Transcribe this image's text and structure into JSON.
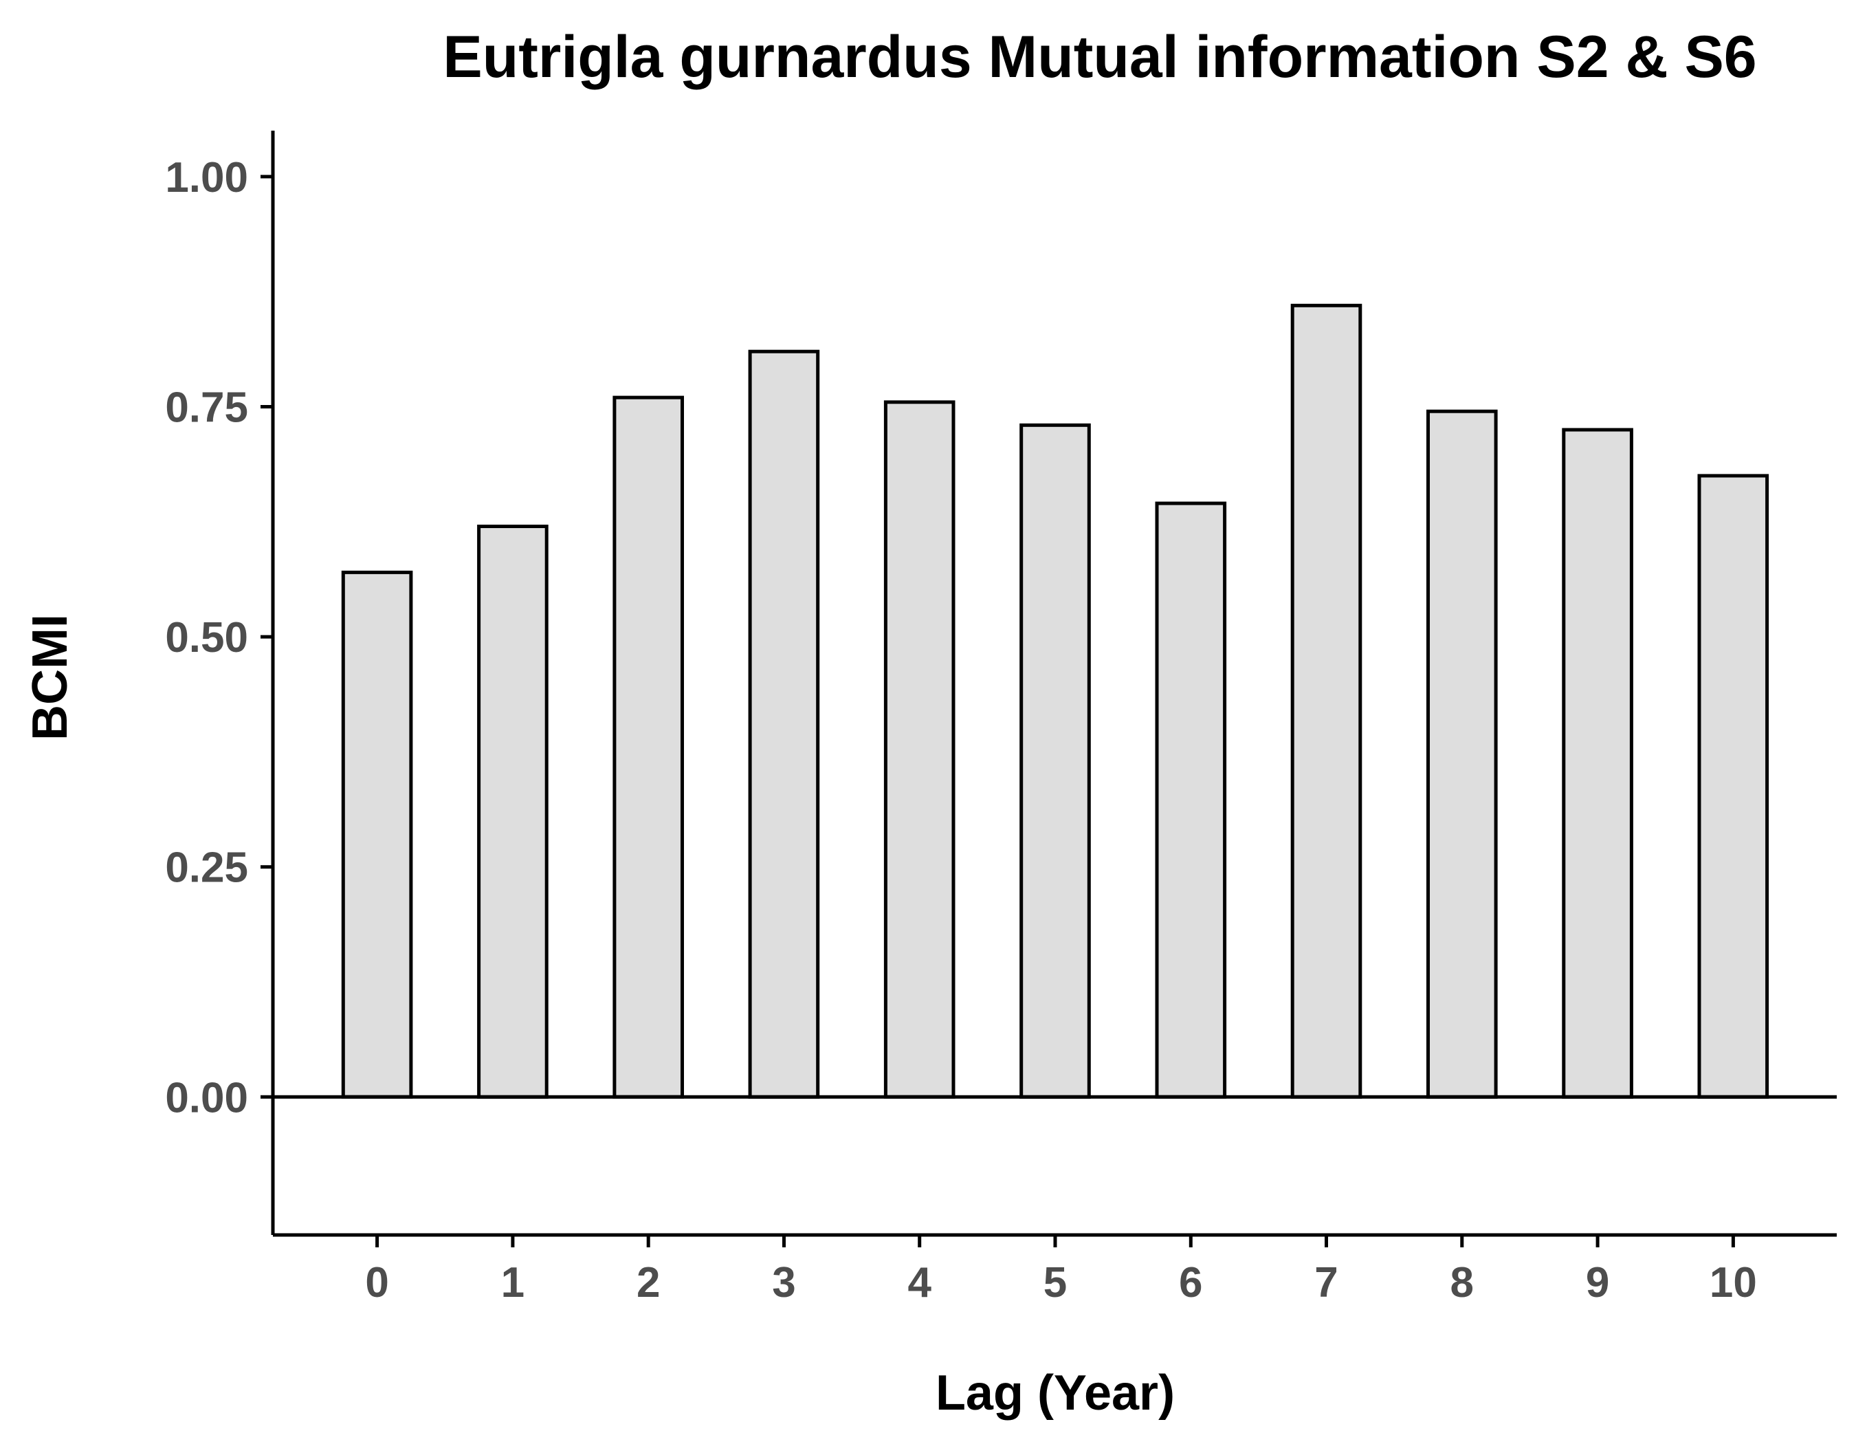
{
  "chart_data": {
    "type": "bar",
    "title": "Eutrigla gurnardus Mutual information S2 & S6",
    "xlabel": "Lag (Year)",
    "ylabel": "BCMI",
    "categories": [
      "0",
      "1",
      "2",
      "3",
      "4",
      "5",
      "6",
      "7",
      "8",
      "9",
      "10"
    ],
    "values": [
      0.57,
      0.62,
      0.76,
      0.81,
      0.755,
      0.73,
      0.645,
      0.86,
      0.745,
      0.725,
      0.675
    ],
    "ylim": [
      -0.15,
      1.05
    ],
    "yticks": [
      0.0,
      0.25,
      0.5,
      0.75,
      1.0
    ],
    "ytick_labels": [
      "0.00",
      "0.25",
      "0.50",
      "0.75",
      "1.00"
    ],
    "reference_line": 0,
    "grid": false,
    "legend": "none",
    "colors": {
      "bar_fill": "#dedede",
      "bar_stroke": "#000000",
      "axis": "#000000",
      "tick_text": "#4d4d4d",
      "title_text": "#000000"
    }
  }
}
